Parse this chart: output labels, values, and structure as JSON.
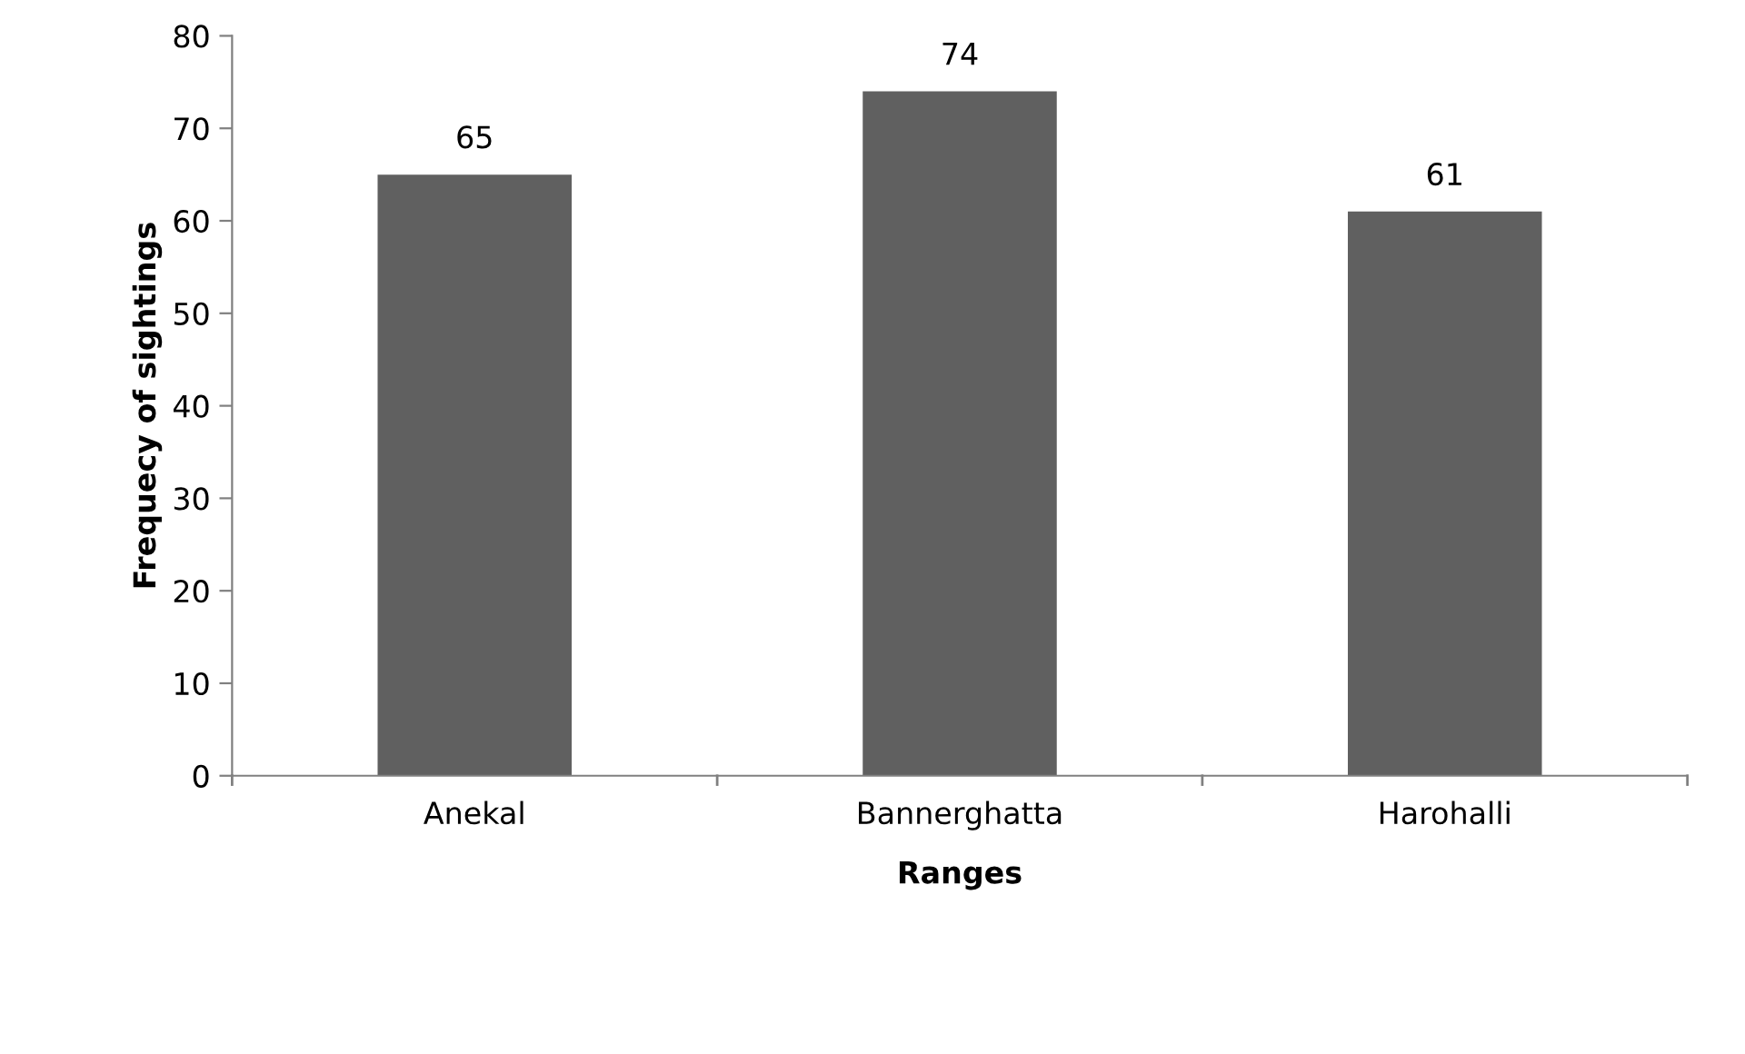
{
  "chart_data": {
    "type": "bar",
    "categories": [
      "Anekal",
      "Bannerghatta",
      "Harohalli"
    ],
    "values": [
      65,
      74,
      61
    ],
    "color": "#606060",
    "xlabel": "Ranges",
    "ylabel": "Frequecy of sightings",
    "ylim": [
      0,
      80
    ],
    "yticks": [
      0,
      10,
      20,
      30,
      40,
      50,
      60,
      70,
      80
    ],
    "data_labels": true,
    "grid": false,
    "legend": false
  }
}
